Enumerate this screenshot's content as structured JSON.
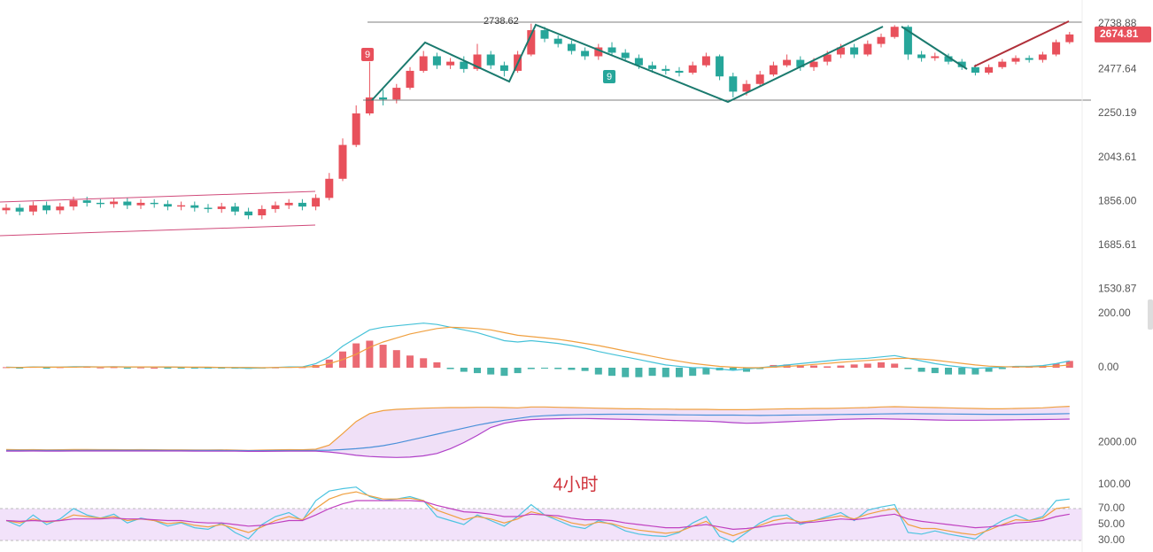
{
  "chart_data": [
    {
      "type": "candlestick",
      "open": [
        1820,
        1830,
        1815,
        1840,
        1820,
        1835,
        1860,
        1850,
        1845,
        1855,
        1840,
        1850,
        1845,
        1835,
        1840,
        1830,
        1825,
        1835,
        1815,
        1800,
        1825,
        1840,
        1850,
        1835,
        1870,
        1950,
        2100,
        2250,
        2330,
        2320,
        2380,
        2470,
        2550,
        2500,
        2520,
        2480,
        2560,
        2500,
        2470,
        2560,
        2700,
        2650,
        2620,
        2580,
        2550,
        2600,
        2570,
        2540,
        2500,
        2480,
        2470,
        2460,
        2500,
        2550,
        2440,
        2360,
        2400,
        2450,
        2500,
        2530,
        2490,
        2520,
        2560,
        2600,
        2560,
        2620,
        2660,
        2720,
        2560,
        2540,
        2550,
        2520,
        2490,
        2460,
        2490,
        2520,
        2540,
        2530,
        2560,
        2630
      ],
      "high": [
        1845,
        1845,
        1855,
        1855,
        1850,
        1875,
        1875,
        1865,
        1870,
        1870,
        1865,
        1865,
        1860,
        1855,
        1855,
        1845,
        1850,
        1850,
        1830,
        1840,
        1855,
        1865,
        1865,
        1885,
        1975,
        2130,
        2290,
        2520,
        2370,
        2400,
        2490,
        2580,
        2570,
        2540,
        2550,
        2620,
        2580,
        2520,
        2580,
        2738.62,
        2720,
        2670,
        2640,
        2600,
        2620,
        2630,
        2590,
        2560,
        2520,
        2500,
        2490,
        2520,
        2570,
        2560,
        2460,
        2420,
        2470,
        2520,
        2560,
        2550,
        2540,
        2580,
        2620,
        2620,
        2640,
        2680,
        2730,
        2730,
        2580,
        2570,
        2565,
        2535,
        2505,
        2505,
        2535,
        2555,
        2555,
        2575,
        2645,
        2690
      ],
      "low": [
        1805,
        1800,
        1800,
        1805,
        1805,
        1820,
        1835,
        1830,
        1830,
        1825,
        1825,
        1830,
        1820,
        1820,
        1815,
        1810,
        1810,
        1800,
        1785,
        1785,
        1810,
        1825,
        1820,
        1820,
        1860,
        1940,
        2090,
        2240,
        2290,
        2300,
        2370,
        2460,
        2480,
        2480,
        2460,
        2470,
        2480,
        2440,
        2460,
        2550,
        2630,
        2600,
        2560,
        2530,
        2530,
        2550,
        2520,
        2480,
        2460,
        2450,
        2440,
        2450,
        2490,
        2420,
        2330,
        2340,
        2390,
        2440,
        2490,
        2470,
        2470,
        2500,
        2540,
        2540,
        2550,
        2600,
        2650,
        2530,
        2520,
        2525,
        2505,
        2475,
        2445,
        2450,
        2480,
        2505,
        2515,
        2515,
        2550,
        2620
      ],
      "close": [
        1830,
        1815,
        1840,
        1820,
        1835,
        1860,
        1850,
        1845,
        1855,
        1840,
        1850,
        1845,
        1835,
        1840,
        1830,
        1825,
        1835,
        1815,
        1800,
        1825,
        1840,
        1850,
        1835,
        1870,
        1950,
        2100,
        2250,
        2330,
        2320,
        2380,
        2470,
        2550,
        2500,
        2520,
        2480,
        2560,
        2500,
        2470,
        2560,
        2700,
        2650,
        2620,
        2580,
        2550,
        2600,
        2570,
        2540,
        2500,
        2480,
        2470,
        2460,
        2500,
        2550,
        2440,
        2360,
        2400,
        2450,
        2500,
        2530,
        2490,
        2520,
        2560,
        2600,
        2560,
        2620,
        2660,
        2720,
        2560,
        2540,
        2550,
        2520,
        2490,
        2460,
        2490,
        2520,
        2540,
        2530,
        2560,
        2630,
        2674.81
      ],
      "up_color": "#e8505b",
      "down_color": "#26a69a",
      "log_scale": true,
      "ylim": [
        1500,
        2780
      ],
      "yticks": [
        {
          "value": 1530.87,
          "label": "1530.87"
        },
        1685.61,
        {
          "value": 1856,
          "label": "1856.00"
        },
        2043.61,
        2250.19,
        2477.64,
        2738.88
      ],
      "last_price": 2674.81,
      "annotations": [
        "9",
        "9",
        "4小时"
      ]
    },
    {
      "type": "macd",
      "histogram": [
        2,
        -2,
        3,
        -1,
        2,
        4,
        3,
        1,
        2,
        -1,
        1,
        0,
        -2,
        -1,
        -2,
        -3,
        -1,
        -3,
        -4,
        -2,
        1,
        3,
        2,
        10,
        30,
        60,
        90,
        100,
        85,
        65,
        45,
        35,
        20,
        -5,
        -15,
        -20,
        -25,
        -30,
        -20,
        -5,
        -3,
        -5,
        -8,
        -12,
        -25,
        -30,
        -35,
        -35,
        -30,
        -35,
        -35,
        -30,
        -25,
        -10,
        -8,
        -15,
        -5,
        10,
        12,
        10,
        8,
        5,
        8,
        12,
        15,
        20,
        15,
        -5,
        -15,
        -20,
        -25,
        -25,
        -25,
        -15,
        -5,
        5,
        5,
        8,
        15,
        25
      ],
      "up_color": "#e8505b",
      "down_color": "#26a69a",
      "series": [
        {
          "color": "#46c2d8",
          "values": [
            2,
            1,
            3,
            2,
            2,
            4,
            4,
            3,
            4,
            3,
            3,
            3,
            2,
            2,
            1,
            0,
            1,
            0,
            -2,
            -1,
            1,
            3,
            3,
            15,
            40,
            80,
            110,
            140,
            150,
            155,
            160,
            165,
            160,
            150,
            140,
            130,
            115,
            100,
            95,
            100,
            95,
            90,
            82,
            72,
            60,
            50,
            40,
            30,
            20,
            10,
            5,
            0,
            0,
            -5,
            -10,
            -5,
            0,
            5,
            10,
            15,
            20,
            25,
            30,
            32,
            35,
            40,
            45,
            35,
            25,
            15,
            8,
            2,
            -2,
            0,
            2,
            5,
            5,
            8,
            15,
            25
          ]
        },
        {
          "color": "#f0a040",
          "values": [
            1,
            1,
            2,
            2,
            2,
            2,
            3,
            3,
            3,
            3,
            3,
            3,
            3,
            2,
            2,
            2,
            1,
            1,
            1,
            0,
            1,
            1,
            2,
            5,
            15,
            30,
            50,
            75,
            95,
            110,
            125,
            135,
            145,
            150,
            148,
            145,
            140,
            130,
            120,
            115,
            110,
            105,
            98,
            90,
            82,
            72,
            62,
            52,
            42,
            32,
            24,
            16,
            10,
            5,
            2,
            0,
            0,
            2,
            5,
            8,
            12,
            16,
            20,
            24,
            27,
            30,
            34,
            35,
            32,
            28,
            22,
            16,
            10,
            6,
            4,
            3,
            3,
            4,
            6,
            10
          ]
        }
      ],
      "ylim": [
        -80,
        240
      ],
      "yticks": [
        {
          "value": 200,
          "label": "200.00"
        },
        {
          "value": 0,
          "label": "0.00"
        }
      ]
    },
    {
      "type": "band",
      "fill": "#ecd8f5",
      "series": [
        {
          "color": "#f0a040",
          "values": [
            1885,
            1882,
            1884,
            1880,
            1882,
            1886,
            1885,
            1883,
            1884,
            1882,
            1883,
            1882,
            1880,
            1881,
            1879,
            1878,
            1880,
            1876,
            1872,
            1876,
            1880,
            1884,
            1882,
            1890,
            1960,
            2150,
            2350,
            2480,
            2530,
            2550,
            2560,
            2570,
            2575,
            2580,
            2580,
            2585,
            2585,
            2580,
            2575,
            2590,
            2590,
            2585,
            2580,
            2575,
            2570,
            2565,
            2560,
            2560,
            2555,
            2555,
            2550,
            2550,
            2550,
            2545,
            2545,
            2545,
            2550,
            2555,
            2560,
            2560,
            2565,
            2565,
            2570,
            2575,
            2580,
            2590,
            2595,
            2590,
            2585,
            2580,
            2575,
            2570,
            2565,
            2560,
            2560,
            2565,
            2570,
            2575,
            2590,
            2600
          ]
        },
        {
          "color": "#4a90d9",
          "values": [
            1872,
            1871,
            1872,
            1871,
            1871,
            1872,
            1873,
            1873,
            1873,
            1873,
            1873,
            1873,
            1872,
            1872,
            1871,
            1870,
            1870,
            1869,
            1867,
            1867,
            1868,
            1869,
            1869,
            1871,
            1875,
            1885,
            1900,
            1920,
            1950,
            1990,
            2040,
            2090,
            2140,
            2190,
            2240,
            2290,
            2330,
            2370,
            2400,
            2430,
            2445,
            2455,
            2460,
            2465,
            2468,
            2470,
            2470,
            2468,
            2465,
            2462,
            2460,
            2458,
            2456,
            2455,
            2455,
            2452,
            2450,
            2452,
            2455,
            2458,
            2460,
            2462,
            2465,
            2468,
            2470,
            2474,
            2478,
            2480,
            2478,
            2476,
            2474,
            2472,
            2470,
            2468,
            2468,
            2469,
            2470,
            2472,
            2476,
            2480
          ]
        },
        {
          "color": "#b040c8",
          "values": [
            1860,
            1860,
            1861,
            1860,
            1860,
            1861,
            1862,
            1862,
            1862,
            1862,
            1862,
            1862,
            1861,
            1861,
            1860,
            1859,
            1859,
            1858,
            1856,
            1856,
            1857,
            1858,
            1858,
            1858,
            1845,
            1820,
            1790,
            1770,
            1760,
            1755,
            1760,
            1780,
            1820,
            1900,
            2000,
            2120,
            2250,
            2320,
            2360,
            2380,
            2390,
            2395,
            2400,
            2400,
            2395,
            2390,
            2385,
            2380,
            2375,
            2370,
            2365,
            2360,
            2355,
            2345,
            2330,
            2320,
            2325,
            2335,
            2345,
            2355,
            2365,
            2375,
            2385,
            2390,
            2395,
            2395,
            2390,
            2385,
            2380,
            2375,
            2370,
            2370,
            2370,
            2372,
            2375,
            2378,
            2380,
            2382,
            2385,
            2390
          ]
        }
      ],
      "ylim": [
        1700,
        2800
      ],
      "yticks": [
        {
          "value": 2000,
          "label": "2000.00"
        }
      ]
    },
    {
      "type": "line",
      "band": [
        30,
        70
      ],
      "band_color": "#f2e2fa",
      "series": [
        {
          "color": "#4cc4e0",
          "values": [
            55,
            48,
            62,
            50,
            57,
            70,
            62,
            58,
            63,
            52,
            58,
            55,
            48,
            52,
            46,
            44,
            52,
            40,
            32,
            50,
            60,
            65,
            55,
            80,
            92,
            95,
            97,
            85,
            80,
            82,
            85,
            80,
            60,
            55,
            50,
            62,
            55,
            48,
            60,
            75,
            62,
            55,
            48,
            45,
            55,
            50,
            42,
            38,
            36,
            35,
            40,
            52,
            60,
            35,
            28,
            40,
            52,
            60,
            62,
            50,
            55,
            60,
            65,
            55,
            68,
            72,
            75,
            40,
            38,
            42,
            38,
            35,
            32,
            45,
            55,
            62,
            55,
            60,
            80,
            82
          ]
        },
        {
          "color": "#f0a040",
          "values": [
            55,
            52,
            57,
            53,
            55,
            62,
            60,
            58,
            60,
            55,
            57,
            55,
            51,
            53,
            49,
            47,
            50,
            45,
            40,
            47,
            55,
            60,
            56,
            70,
            82,
            88,
            91,
            86,
            82,
            82,
            83,
            80,
            68,
            62,
            56,
            60,
            57,
            52,
            57,
            66,
            62,
            58,
            52,
            49,
            53,
            51,
            46,
            43,
            41,
            39,
            41,
            48,
            54,
            42,
            36,
            42,
            49,
            55,
            58,
            53,
            55,
            58,
            61,
            57,
            63,
            67,
            70,
            50,
            45,
            45,
            42,
            39,
            37,
            43,
            50,
            56,
            55,
            58,
            70,
            72
          ]
        },
        {
          "color": "#c040c0",
          "values": [
            55,
            54,
            55,
            54,
            55,
            57,
            57,
            57,
            58,
            57,
            57,
            56,
            55,
            55,
            53,
            52,
            52,
            50,
            48,
            49,
            52,
            55,
            55,
            62,
            70,
            76,
            80,
            80,
            80,
            80,
            80,
            79,
            74,
            70,
            66,
            65,
            63,
            60,
            60,
            63,
            62,
            61,
            58,
            56,
            56,
            55,
            52,
            50,
            48,
            46,
            46,
            48,
            50,
            47,
            44,
            45,
            47,
            50,
            52,
            52,
            53,
            55,
            57,
            56,
            58,
            61,
            63,
            57,
            54,
            52,
            50,
            48,
            46,
            47,
            49,
            52,
            53,
            55,
            60,
            63
          ]
        }
      ],
      "ylim": [
        20,
        100
      ],
      "yticks": [
        {
          "value": 100,
          "label": "100.00"
        },
        {
          "value": 70,
          "label": "70.00"
        },
        {
          "value": 50,
          "label": "50.00"
        },
        {
          "value": 30,
          "label": "30.00"
        }
      ]
    }
  ]
}
